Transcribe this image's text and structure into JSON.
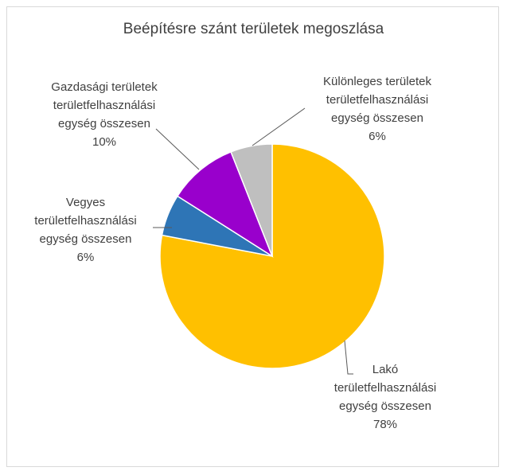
{
  "chart_data": {
    "type": "pie",
    "title": "Beépítésre szánt területek megoszlása",
    "categories": [
      "Lakó területfelhasználási egység összesen",
      "Vegyes területfelhasználási egység összesen",
      "Gazdasági területek területfelhasználási egység összesen",
      "Különleges területek területfelhasználási egység összesen"
    ],
    "values": [
      78,
      6,
      10,
      6
    ],
    "value_labels": [
      "78%",
      "6%",
      "10%",
      "6%"
    ],
    "colors": [
      "#FFC000",
      "#2E75B6",
      "#9900CC",
      "#BFBFBF"
    ]
  }
}
